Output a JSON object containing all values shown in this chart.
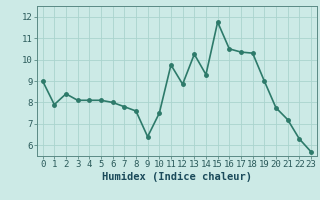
{
  "x": [
    0,
    1,
    2,
    3,
    4,
    5,
    6,
    7,
    8,
    9,
    10,
    11,
    12,
    13,
    14,
    15,
    16,
    17,
    18,
    19,
    20,
    21,
    22,
    23
  ],
  "y": [
    9.0,
    7.9,
    8.4,
    8.1,
    8.1,
    8.1,
    8.0,
    7.8,
    7.6,
    6.4,
    7.5,
    9.75,
    8.85,
    10.25,
    9.3,
    11.75,
    10.5,
    10.35,
    10.3,
    9.0,
    7.75,
    7.2,
    6.3,
    5.7
  ],
  "xlabel": "Humidex (Indice chaleur)",
  "ylim": [
    5.5,
    12.5
  ],
  "xlim": [
    -0.5,
    23.5
  ],
  "yticks": [
    6,
    7,
    8,
    9,
    10,
    11,
    12
  ],
  "xticks": [
    0,
    1,
    2,
    3,
    4,
    5,
    6,
    7,
    8,
    9,
    10,
    11,
    12,
    13,
    14,
    15,
    16,
    17,
    18,
    19,
    20,
    21,
    22,
    23
  ],
  "line_color": "#2d7a6a",
  "marker_color": "#2d7a6a",
  "bg_color": "#cceae6",
  "grid_color": "#aad4ce",
  "xlabel_color": "#1a4a5a",
  "xlabel_fontsize": 7.5,
  "tick_fontsize": 6.5,
  "tick_color": "#2a5a5a",
  "linewidth": 1.2,
  "markersize": 2.5
}
